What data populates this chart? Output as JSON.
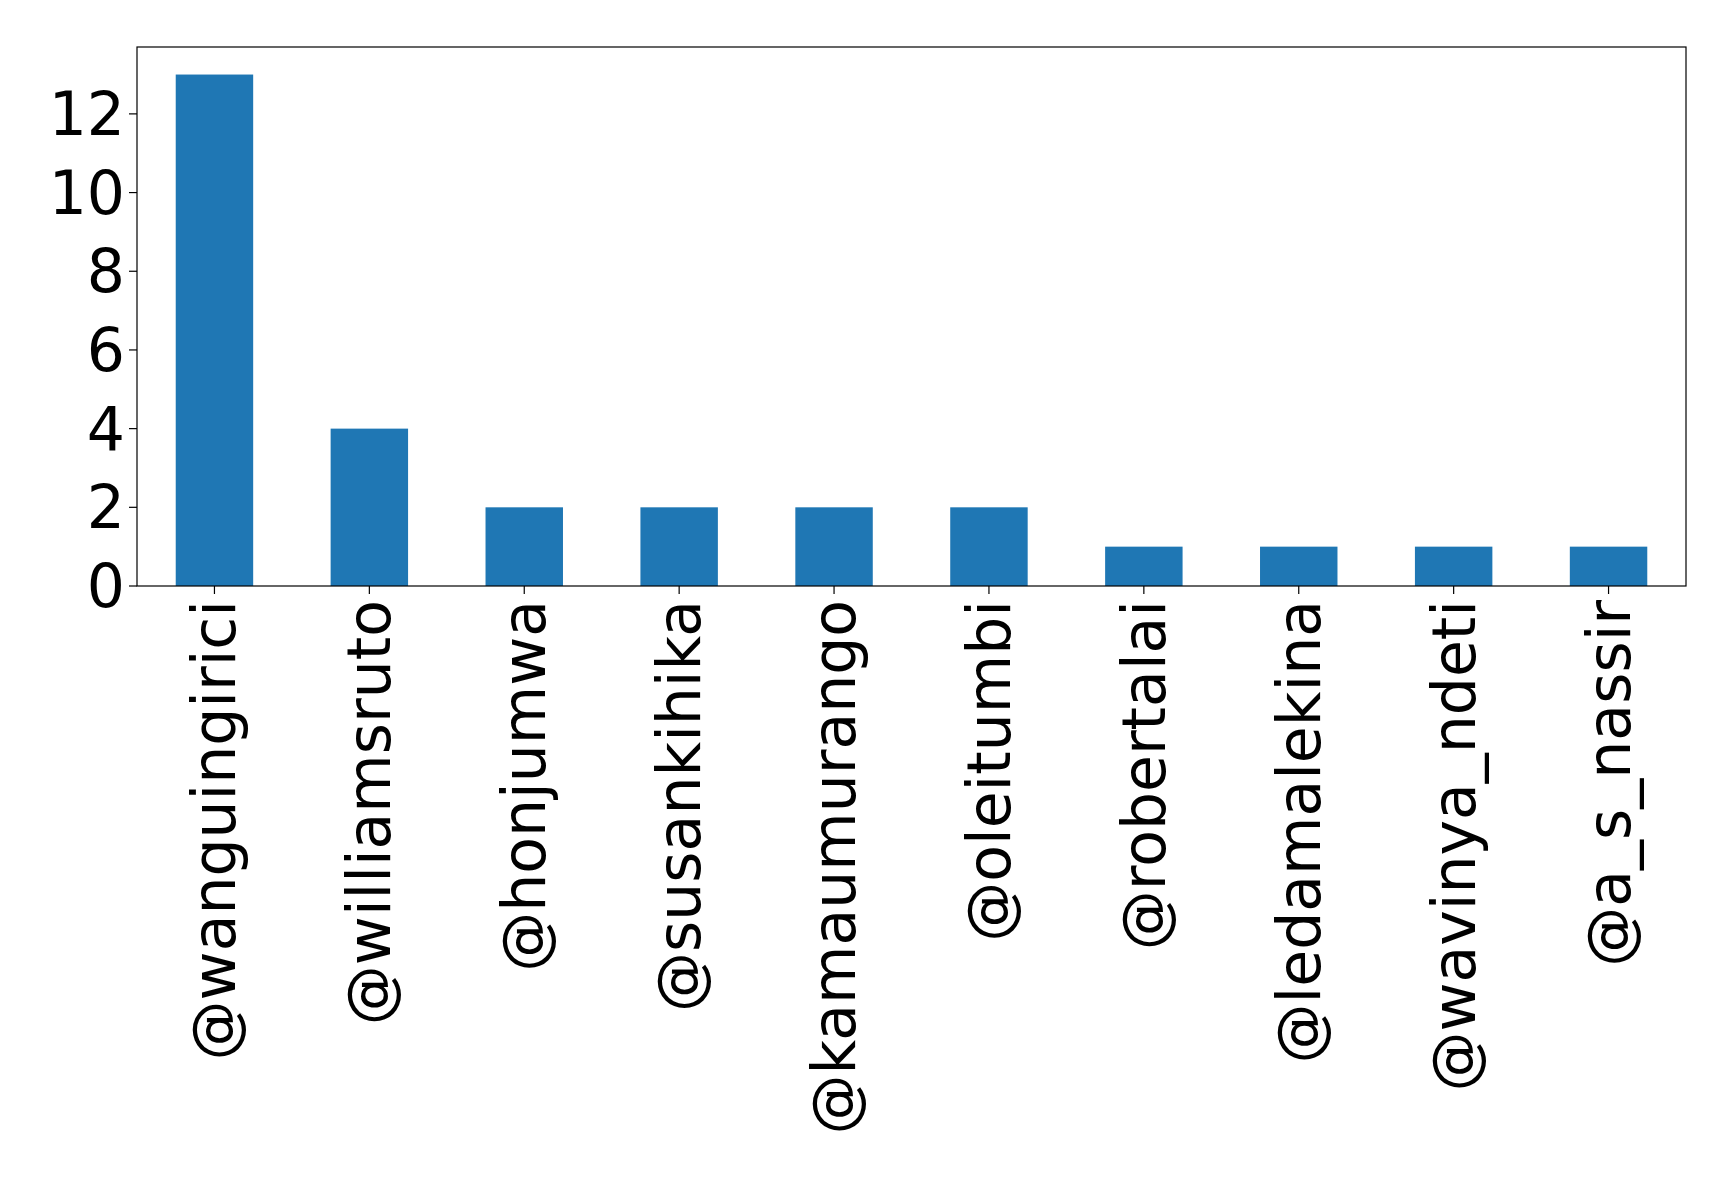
{
  "chart_data": {
    "type": "bar",
    "categories": [
      "@wanguingirici",
      "@williamsruto",
      "@honjumwa",
      "@susankihika",
      "@kamaumurango",
      "@oleitumbi",
      "@robertalai",
      "@ledamalekina",
      "@wavinya_ndeti",
      "@a_s_nassir"
    ],
    "values": [
      13,
      4,
      2,
      2,
      2,
      2,
      1,
      1,
      1,
      1
    ],
    "color": "#1f77b4",
    "ylim": [
      0,
      13.7
    ],
    "yticks": [
      0,
      2,
      4,
      6,
      8,
      10,
      12
    ],
    "grid": false
  }
}
